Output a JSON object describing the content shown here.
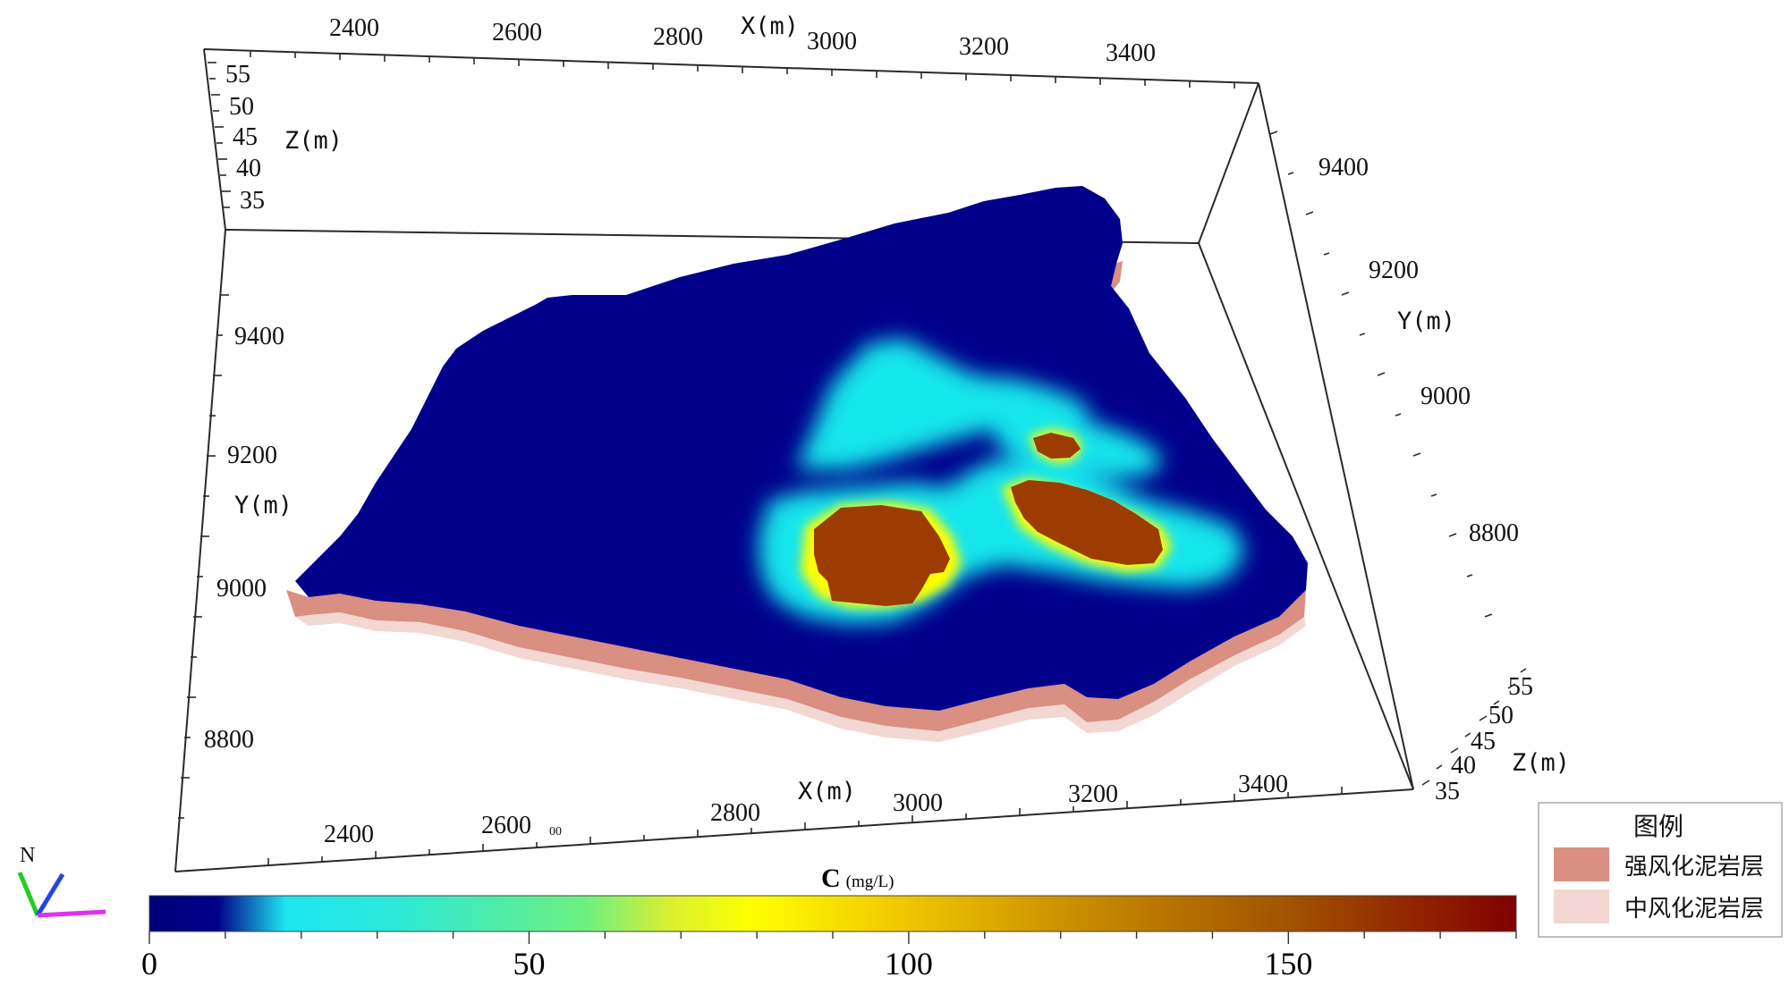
{
  "axes": {
    "x_title": "X",
    "y_title": "Y",
    "z_title": "Z",
    "unit": "(m)",
    "x_ticks_top": [
      "2400",
      "2600",
      "2800",
      "3000",
      "3200",
      "3400"
    ],
    "x_ticks_bottom": [
      "2400",
      "2600",
      "2800",
      "3000",
      "3200",
      "3400"
    ],
    "y_ticks_left": [
      "9400",
      "9200",
      "9000",
      "8800"
    ],
    "y_ticks_right": [
      "9400",
      "9200",
      "9000",
      "8800"
    ],
    "z_ticks_left": [
      "55",
      "50",
      "45",
      "40",
      "35"
    ],
    "z_ticks_right": [
      "55",
      "50",
      "45",
      "40",
      "35"
    ],
    "stray_label": "00"
  },
  "compass": {
    "north_label": "N"
  },
  "colorbar": {
    "title": "C",
    "unit": "(mg/L)",
    "min": 0,
    "max": 180,
    "ticks": [
      "0",
      "50",
      "100",
      "150"
    ],
    "tick_values": [
      0,
      50,
      100,
      150
    ],
    "colors": [
      "#00007a",
      "#00008a",
      "#1ee6f0",
      "#2ce8d8",
      "#6ef080",
      "#d8f030",
      "#ffff00",
      "#f0c800",
      "#c88c00",
      "#a05000",
      "#820000"
    ]
  },
  "legend": {
    "title": "图例",
    "items": [
      {
        "label": "强风化泥岩层",
        "color": "#d98f81"
      },
      {
        "label": "中风化泥岩层",
        "color": "#f2d7d3"
      }
    ]
  },
  "colors": {
    "plume_base": "#00008b",
    "plume_cyan": "#12eef0",
    "plume_hot": "#9c3c00",
    "plume_yellow": "#ffff00",
    "layer_strong": "#d98f81",
    "layer_medium": "#f2d7d3"
  }
}
